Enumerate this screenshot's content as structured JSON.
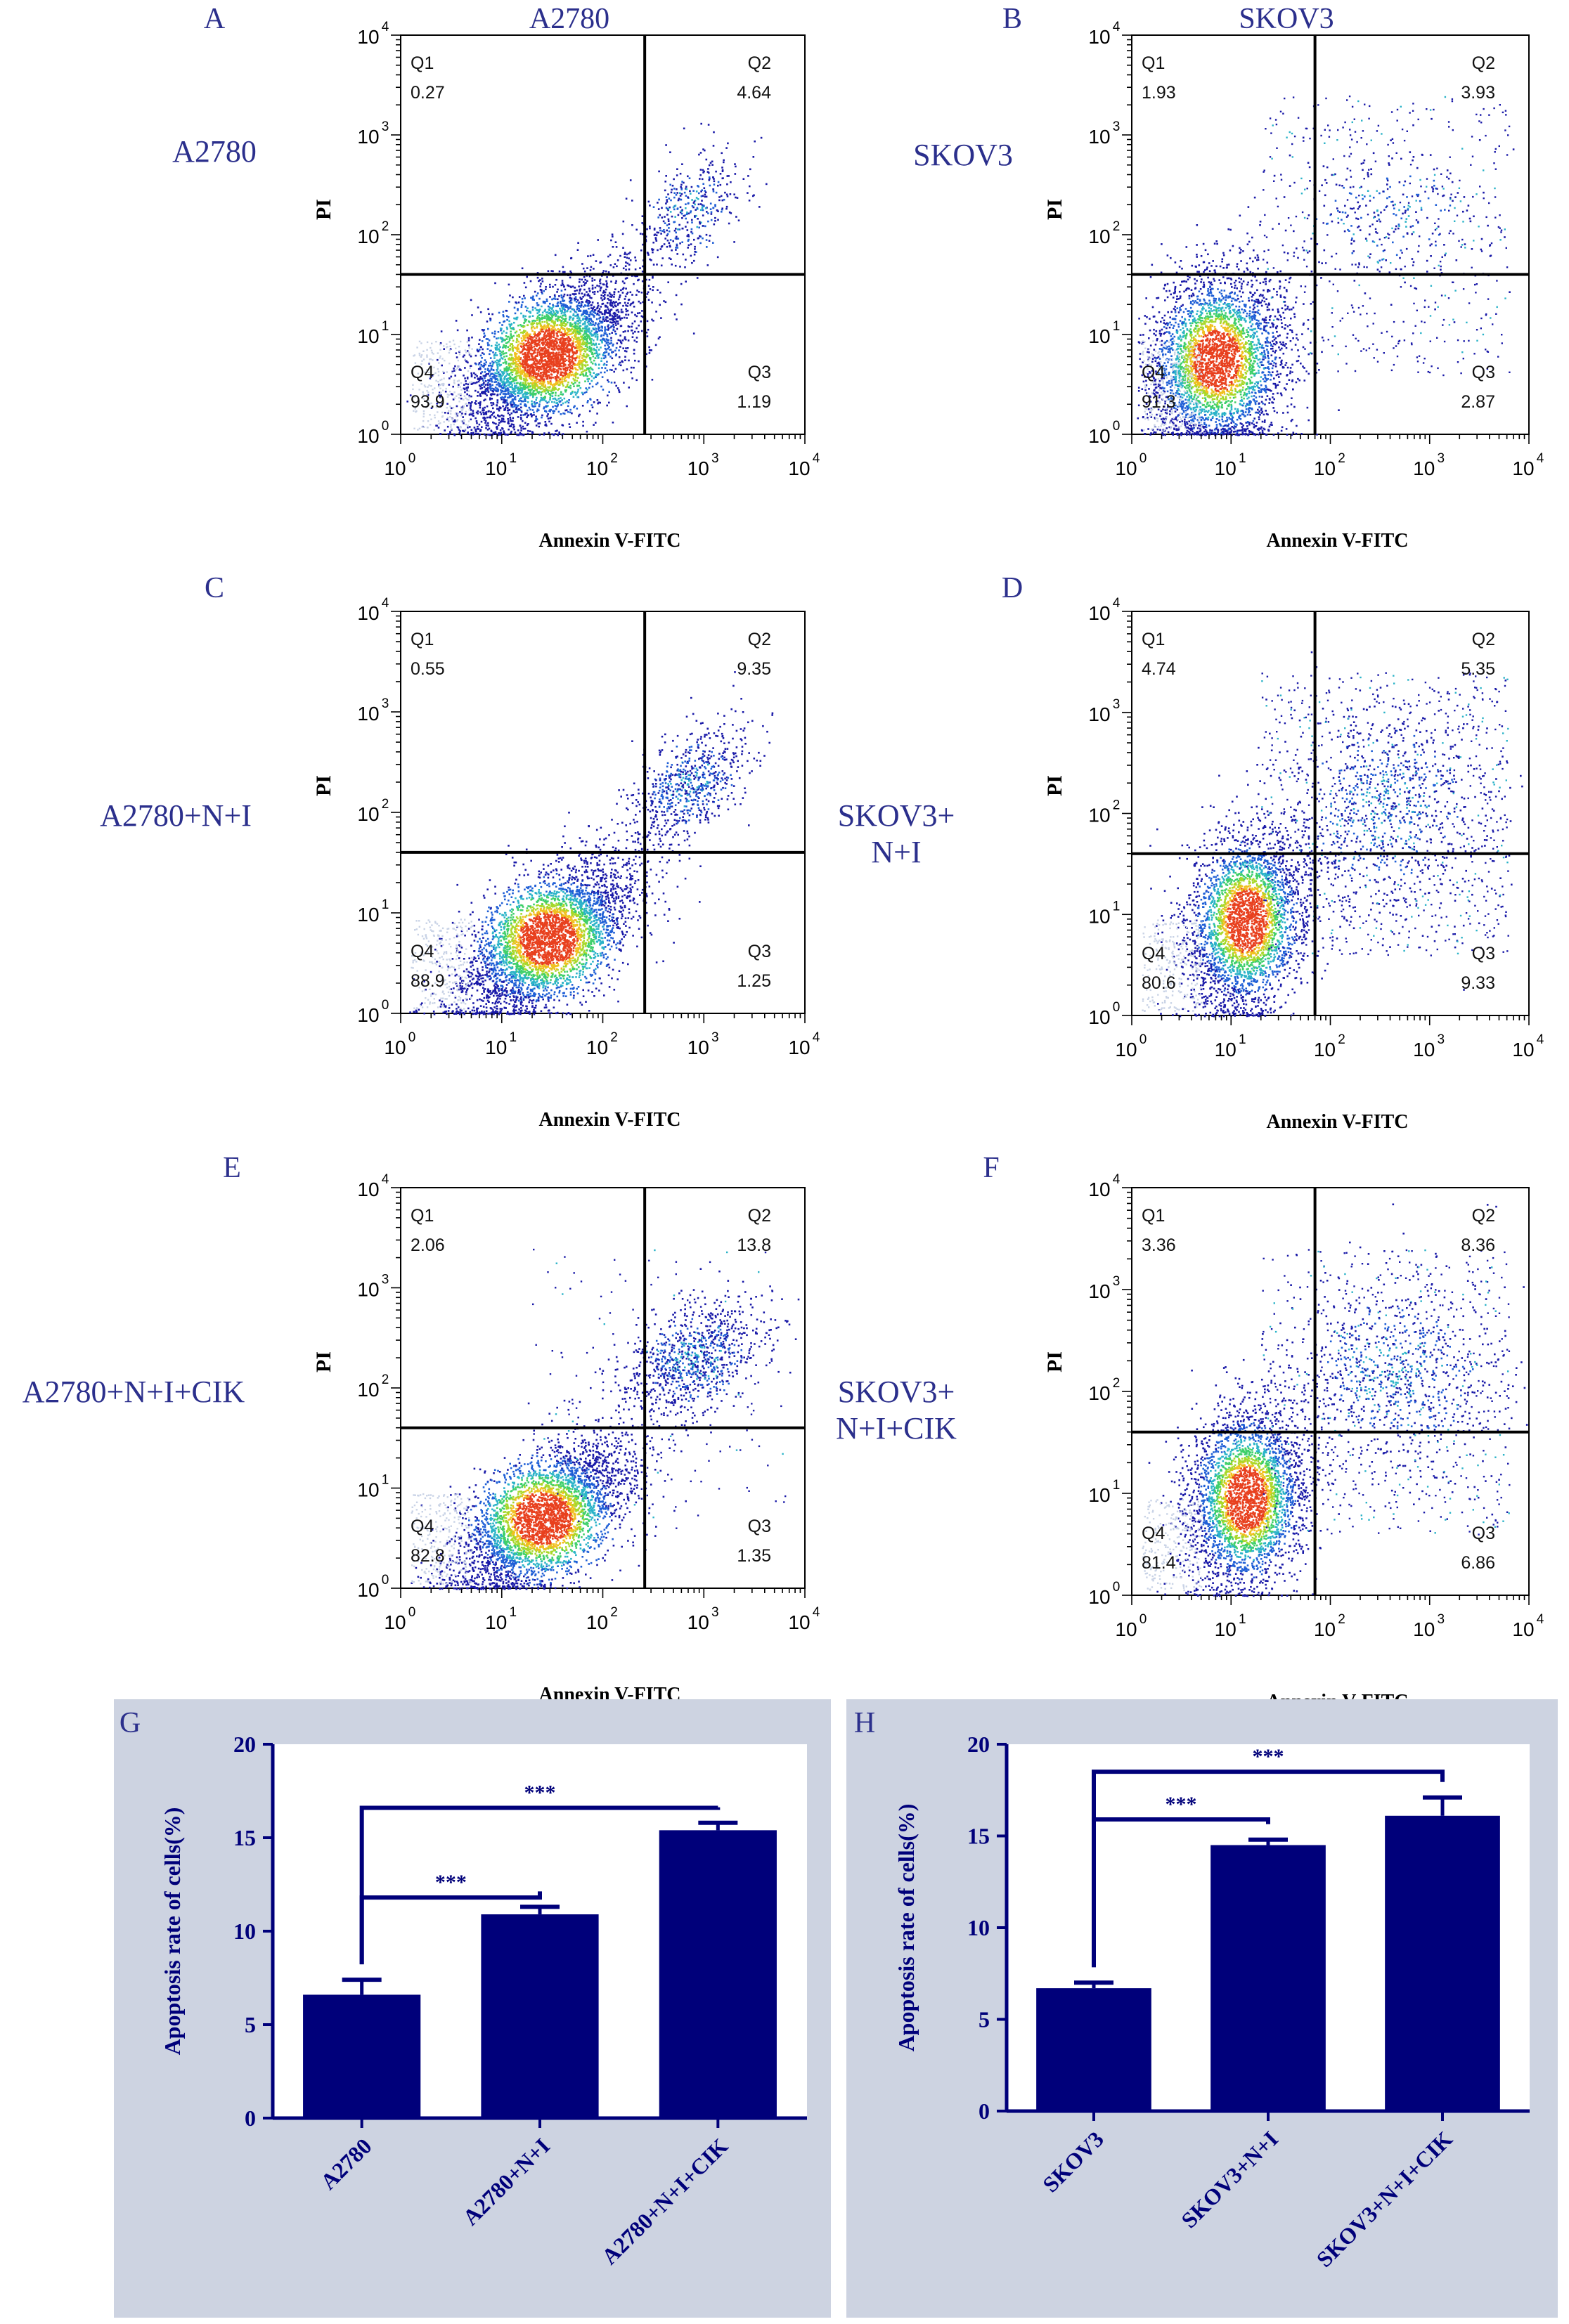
{
  "colors": {
    "label_blue": "#2b2f8c",
    "bar_navy": "#00007a",
    "panel_bg": "#cdd3e1",
    "density": [
      "#1a1aa8",
      "#1f5fd6",
      "#2bb3c8",
      "#3fcf6a",
      "#a8d82a",
      "#f0c020",
      "#e8401e"
    ]
  },
  "column_titles": [
    "A2780",
    "SKOV3"
  ],
  "chart_data": [
    {
      "type": "scatter",
      "panel": "A",
      "row_label": "A2780",
      "xlabel": "Annexin V-FITC",
      "ylabel": "PI",
      "xlim": [
        1,
        10000
      ],
      "ylim": [
        1,
        10000
      ],
      "scale": "log",
      "x_ticks": [
        "10",
        "10",
        "10",
        "10",
        "10"
      ],
      "x_tick_exps": [
        "0",
        "1",
        "2",
        "3",
        "4"
      ],
      "y_ticks": [
        "10",
        "10",
        "10",
        "10",
        "10"
      ],
      "y_tick_exps": [
        "0",
        "1",
        "2",
        "3",
        "4"
      ],
      "gate_x": 260,
      "gate_y": 40,
      "quadrants": [
        {
          "name": "Q1",
          "value": "0.27"
        },
        {
          "name": "Q2",
          "value": "4.64"
        },
        {
          "name": "Q3",
          "value": "1.19"
        },
        {
          "name": "Q4",
          "value": "93.9"
        }
      ]
    },
    {
      "type": "scatter",
      "panel": "B",
      "row_label": "SKOV3",
      "xlabel": "Annexin V-FITC",
      "ylabel": "PI",
      "xlim": [
        1,
        10000
      ],
      "ylim": [
        1,
        10000
      ],
      "scale": "log",
      "x_ticks": [
        "10",
        "10",
        "10",
        "10",
        "10"
      ],
      "x_tick_exps": [
        "0",
        "1",
        "2",
        "3",
        "4"
      ],
      "y_ticks": [
        "10",
        "10",
        "10",
        "10",
        "10"
      ],
      "y_tick_exps": [
        "0",
        "1",
        "2",
        "3",
        "4"
      ],
      "gate_x": 70,
      "gate_y": 40,
      "quadrants": [
        {
          "name": "Q1",
          "value": "1.93"
        },
        {
          "name": "Q2",
          "value": "3.93"
        },
        {
          "name": "Q3",
          "value": "2.87"
        },
        {
          "name": "Q4",
          "value": "91.3"
        }
      ]
    },
    {
      "type": "scatter",
      "panel": "C",
      "row_label": "A2780+N+I",
      "xlabel": "Annexin V-FITC",
      "ylabel": "PI",
      "xlim": [
        1,
        10000
      ],
      "ylim": [
        1,
        10000
      ],
      "scale": "log",
      "x_ticks": [
        "10",
        "10",
        "10",
        "10",
        "10"
      ],
      "x_tick_exps": [
        "0",
        "1",
        "2",
        "3",
        "4"
      ],
      "y_ticks": [
        "10",
        "10",
        "10",
        "10",
        "10"
      ],
      "y_tick_exps": [
        "0",
        "1",
        "2",
        "3",
        "4"
      ],
      "gate_x": 260,
      "gate_y": 40,
      "quadrants": [
        {
          "name": "Q1",
          "value": "0.55"
        },
        {
          "name": "Q2",
          "value": "9.35"
        },
        {
          "name": "Q3",
          "value": "1.25"
        },
        {
          "name": "Q4",
          "value": "88.9"
        }
      ]
    },
    {
      "type": "scatter",
      "panel": "D",
      "row_label": "SKOV3+\nN+I",
      "xlabel": "Annexin V-FITC",
      "ylabel": "PI",
      "xlim": [
        1,
        10000
      ],
      "ylim": [
        1,
        10000
      ],
      "scale": "log",
      "x_ticks": [
        "10",
        "10",
        "10",
        "10",
        "10"
      ],
      "x_tick_exps": [
        "0",
        "1",
        "2",
        "3",
        "4"
      ],
      "y_ticks": [
        "10",
        "10",
        "10",
        "10",
        "10"
      ],
      "y_tick_exps": [
        "0",
        "1",
        "2",
        "3",
        "4"
      ],
      "gate_x": 70,
      "gate_y": 40,
      "quadrants": [
        {
          "name": "Q1",
          "value": "4.74"
        },
        {
          "name": "Q2",
          "value": "5.35"
        },
        {
          "name": "Q3",
          "value": "9.33"
        },
        {
          "name": "Q4",
          "value": "80.6"
        }
      ]
    },
    {
      "type": "scatter",
      "panel": "E",
      "row_label": "A2780+N+I+CIK",
      "xlabel": "Annexin V-FITC",
      "ylabel": "PI",
      "xlim": [
        1,
        10000
      ],
      "ylim": [
        1,
        10000
      ],
      "scale": "log",
      "x_ticks": [
        "10",
        "10",
        "10",
        "10",
        "10"
      ],
      "x_tick_exps": [
        "0",
        "1",
        "2",
        "3",
        "4"
      ],
      "y_ticks": [
        "10",
        "10",
        "10",
        "10",
        "10"
      ],
      "y_tick_exps": [
        "0",
        "1",
        "2",
        "3",
        "4"
      ],
      "gate_x": 260,
      "gate_y": 40,
      "quadrants": [
        {
          "name": "Q1",
          "value": "2.06"
        },
        {
          "name": "Q2",
          "value": "13.8"
        },
        {
          "name": "Q3",
          "value": "1.35"
        },
        {
          "name": "Q4",
          "value": "82.8"
        }
      ]
    },
    {
      "type": "scatter",
      "panel": "F",
      "row_label": "SKOV3+\nN+I+CIK",
      "xlabel": "Annexin V-FITC",
      "ylabel": "PI",
      "xlim": [
        1,
        10000
      ],
      "ylim": [
        1,
        10000
      ],
      "scale": "log",
      "x_ticks": [
        "10",
        "10",
        "10",
        "10",
        "10"
      ],
      "x_tick_exps": [
        "0",
        "1",
        "2",
        "3",
        "4"
      ],
      "y_ticks": [
        "10",
        "10",
        "10",
        "10",
        "10"
      ],
      "y_tick_exps": [
        "0",
        "1",
        "2",
        "3",
        "4"
      ],
      "gate_x": 70,
      "gate_y": 40,
      "quadrants": [
        {
          "name": "Q1",
          "value": "3.36"
        },
        {
          "name": "Q2",
          "value": "8.36"
        },
        {
          "name": "Q3",
          "value": "6.86"
        },
        {
          "name": "Q4",
          "value": "81.4"
        }
      ]
    },
    {
      "type": "bar",
      "panel": "G",
      "ylabel": "Apoptosis rate of cells(%)",
      "ylim": [
        0,
        20
      ],
      "y_ticks": [
        0,
        5,
        10,
        15,
        20
      ],
      "categories": [
        "A2780",
        "A2780+N+I",
        "A2780+N+I+CIK"
      ],
      "values": [
        6.6,
        10.9,
        15.4
      ],
      "errors": [
        0.8,
        0.4,
        0.4
      ],
      "significance": [
        {
          "from": 0,
          "to": 1,
          "label": "***"
        },
        {
          "from": 0,
          "to": 2,
          "label": "***"
        }
      ]
    },
    {
      "type": "bar",
      "panel": "H",
      "ylabel": "Apoptosis rate of cells(%)",
      "ylim": [
        0,
        20
      ],
      "y_ticks": [
        0,
        5,
        10,
        15,
        20
      ],
      "categories": [
        "SKOV3",
        "SKOV3+N+I",
        "SKOV3+N+I+CIK"
      ],
      "values": [
        6.7,
        14.5,
        16.1
      ],
      "errors": [
        0.3,
        0.3,
        1.0
      ],
      "significance": [
        {
          "from": 0,
          "to": 1,
          "label": "***"
        },
        {
          "from": 0,
          "to": 2,
          "label": "***"
        }
      ]
    }
  ]
}
